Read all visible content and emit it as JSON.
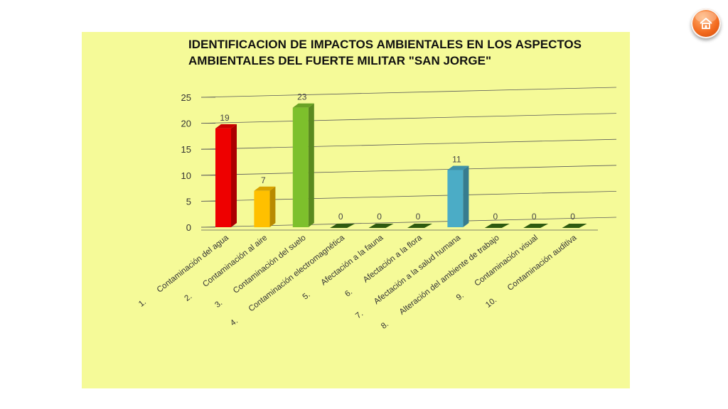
{
  "slide": {
    "home_icon": "home-icon",
    "accent_color": "#f36a1e",
    "panel_color": "#f5fa98"
  },
  "chart_data": {
    "type": "bar",
    "title": "IDENTIFICACION DE IMPACTOS AMBIENTALES EN LOS ASPECTOS AMBIENTALES DEL FUERTE MILITAR \"SAN JORGE\"",
    "categories": [
      "Contaminación del agua",
      "Contaminación al aire",
      "Contaminación del suelo",
      "Contaminación electromagnética",
      "Afectación a la fauna",
      "Afectación a la flora",
      "Afectación a la salud humana",
      "Alteración del ambiente de trabajo",
      "Contaminación visual",
      "Contaminación auditiva"
    ],
    "category_numbers": [
      "1.",
      "2.",
      "3.",
      "4.",
      "5.",
      "6.",
      "7.",
      "8.",
      "9.",
      "10."
    ],
    "values": [
      19,
      7,
      23,
      0,
      0,
      0,
      11,
      0,
      0,
      0
    ],
    "colors": [
      "#ee0000",
      "#ffc000",
      "#7dc02c",
      "#2e5a10",
      "#2e5a10",
      "#2e5a10",
      "#4bacc6",
      "#2e5a10",
      "#2e5a10",
      "#2e5a10"
    ],
    "ylim": [
      0,
      25
    ],
    "yticks": [
      0,
      5,
      10,
      15,
      20,
      25
    ],
    "grid": true,
    "legend": "none",
    "style": "3d-column"
  }
}
